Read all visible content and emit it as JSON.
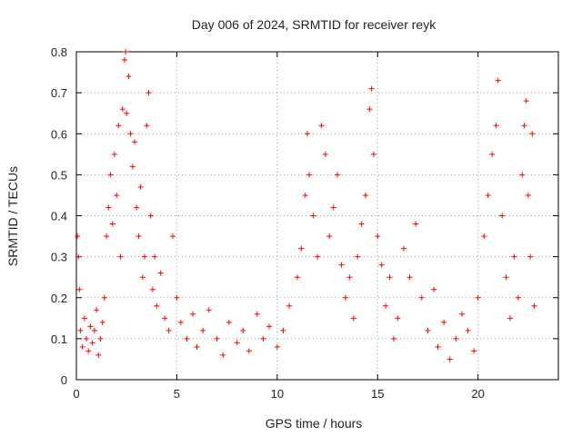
{
  "chart_data": {
    "type": "scatter",
    "title": "Day 006 of 2024, SRMTID for receiver reyk",
    "xlabel": "GPS time / hours",
    "ylabel": "SRMTID / TECUs",
    "xlim": [
      0,
      24
    ],
    "ylim": [
      0,
      0.8
    ],
    "x_ticks": [
      0,
      5,
      10,
      15,
      20
    ],
    "y_ticks": [
      0,
      0.1,
      0.2,
      0.3,
      0.4,
      0.5,
      0.6,
      0.7,
      0.8
    ],
    "x_tick_labels": [
      "0",
      "5",
      "10",
      "15",
      "20"
    ],
    "y_tick_labels": [
      "0",
      "0.1",
      "0.2",
      "0.3",
      "0.4",
      "0.5",
      "0.6",
      "0.7",
      "0.8"
    ],
    "grid": true,
    "marker": "+",
    "series": [
      {
        "name": "SRMTID",
        "color": "#ff0000",
        "points": [
          [
            0.05,
            0.35
          ],
          [
            0.1,
            0.3
          ],
          [
            0.15,
            0.22
          ],
          [
            0.2,
            0.12
          ],
          [
            0.3,
            0.08
          ],
          [
            0.4,
            0.15
          ],
          [
            0.5,
            0.1
          ],
          [
            0.6,
            0.07
          ],
          [
            0.7,
            0.13
          ],
          [
            0.8,
            0.09
          ],
          [
            0.9,
            0.12
          ],
          [
            1.0,
            0.17
          ],
          [
            1.1,
            0.06
          ],
          [
            1.2,
            0.1
          ],
          [
            1.3,
            0.14
          ],
          [
            1.4,
            0.2
          ],
          [
            1.5,
            0.35
          ],
          [
            1.6,
            0.42
          ],
          [
            1.7,
            0.5
          ],
          [
            1.8,
            0.38
          ],
          [
            1.9,
            0.55
          ],
          [
            2.0,
            0.45
          ],
          [
            2.1,
            0.62
          ],
          [
            2.2,
            0.3
          ],
          [
            2.3,
            0.66
          ],
          [
            2.4,
            0.78
          ],
          [
            2.45,
            0.8
          ],
          [
            2.5,
            0.65
          ],
          [
            2.6,
            0.74
          ],
          [
            2.7,
            0.6
          ],
          [
            2.8,
            0.52
          ],
          [
            2.9,
            0.58
          ],
          [
            3.0,
            0.42
          ],
          [
            3.1,
            0.35
          ],
          [
            3.2,
            0.47
          ],
          [
            3.3,
            0.25
          ],
          [
            3.4,
            0.3
          ],
          [
            3.5,
            0.62
          ],
          [
            3.6,
            0.7
          ],
          [
            3.7,
            0.4
          ],
          [
            3.8,
            0.22
          ],
          [
            3.9,
            0.3
          ],
          [
            4.0,
            0.18
          ],
          [
            4.2,
            0.26
          ],
          [
            4.4,
            0.15
          ],
          [
            4.6,
            0.12
          ],
          [
            4.8,
            0.35
          ],
          [
            5.0,
            0.2
          ],
          [
            5.2,
            0.14
          ],
          [
            5.5,
            0.1
          ],
          [
            5.8,
            0.16
          ],
          [
            6.0,
            0.08
          ],
          [
            6.3,
            0.12
          ],
          [
            6.6,
            0.17
          ],
          [
            7.0,
            0.1
          ],
          [
            7.3,
            0.06
          ],
          [
            7.6,
            0.14
          ],
          [
            8.0,
            0.09
          ],
          [
            8.3,
            0.12
          ],
          [
            8.6,
            0.07
          ],
          [
            9.0,
            0.16
          ],
          [
            9.3,
            0.1
          ],
          [
            9.6,
            0.13
          ],
          [
            10.0,
            0.08
          ],
          [
            10.3,
            0.12
          ],
          [
            10.6,
            0.18
          ],
          [
            11.0,
            0.25
          ],
          [
            11.2,
            0.32
          ],
          [
            11.4,
            0.45
          ],
          [
            11.5,
            0.6
          ],
          [
            11.6,
            0.5
          ],
          [
            11.8,
            0.4
          ],
          [
            12.0,
            0.3
          ],
          [
            12.2,
            0.62
          ],
          [
            12.4,
            0.55
          ],
          [
            12.6,
            0.35
          ],
          [
            12.8,
            0.42
          ],
          [
            13.0,
            0.5
          ],
          [
            13.2,
            0.28
          ],
          [
            13.4,
            0.2
          ],
          [
            13.6,
            0.25
          ],
          [
            13.8,
            0.15
          ],
          [
            14.0,
            0.3
          ],
          [
            14.2,
            0.38
          ],
          [
            14.4,
            0.45
          ],
          [
            14.6,
            0.66
          ],
          [
            14.7,
            0.71
          ],
          [
            14.8,
            0.55
          ],
          [
            15.0,
            0.35
          ],
          [
            15.2,
            0.28
          ],
          [
            15.4,
            0.18
          ],
          [
            15.6,
            0.25
          ],
          [
            15.8,
            0.1
          ],
          [
            16.0,
            0.15
          ],
          [
            16.3,
            0.32
          ],
          [
            16.6,
            0.25
          ],
          [
            16.9,
            0.38
          ],
          [
            17.2,
            0.2
          ],
          [
            17.5,
            0.12
          ],
          [
            17.8,
            0.22
          ],
          [
            18.0,
            0.08
          ],
          [
            18.3,
            0.14
          ],
          [
            18.6,
            0.05
          ],
          [
            18.9,
            0.1
          ],
          [
            19.2,
            0.16
          ],
          [
            19.5,
            0.12
          ],
          [
            19.8,
            0.07
          ],
          [
            20.0,
            0.2
          ],
          [
            20.3,
            0.35
          ],
          [
            20.5,
            0.45
          ],
          [
            20.7,
            0.55
          ],
          [
            20.9,
            0.62
          ],
          [
            21.0,
            0.73
          ],
          [
            21.2,
            0.4
          ],
          [
            21.4,
            0.25
          ],
          [
            21.6,
            0.15
          ],
          [
            21.8,
            0.3
          ],
          [
            22.0,
            0.2
          ],
          [
            22.2,
            0.5
          ],
          [
            22.3,
            0.62
          ],
          [
            22.4,
            0.68
          ],
          [
            22.5,
            0.45
          ],
          [
            22.6,
            0.3
          ],
          [
            22.7,
            0.6
          ],
          [
            22.8,
            0.18
          ]
        ]
      }
    ]
  }
}
